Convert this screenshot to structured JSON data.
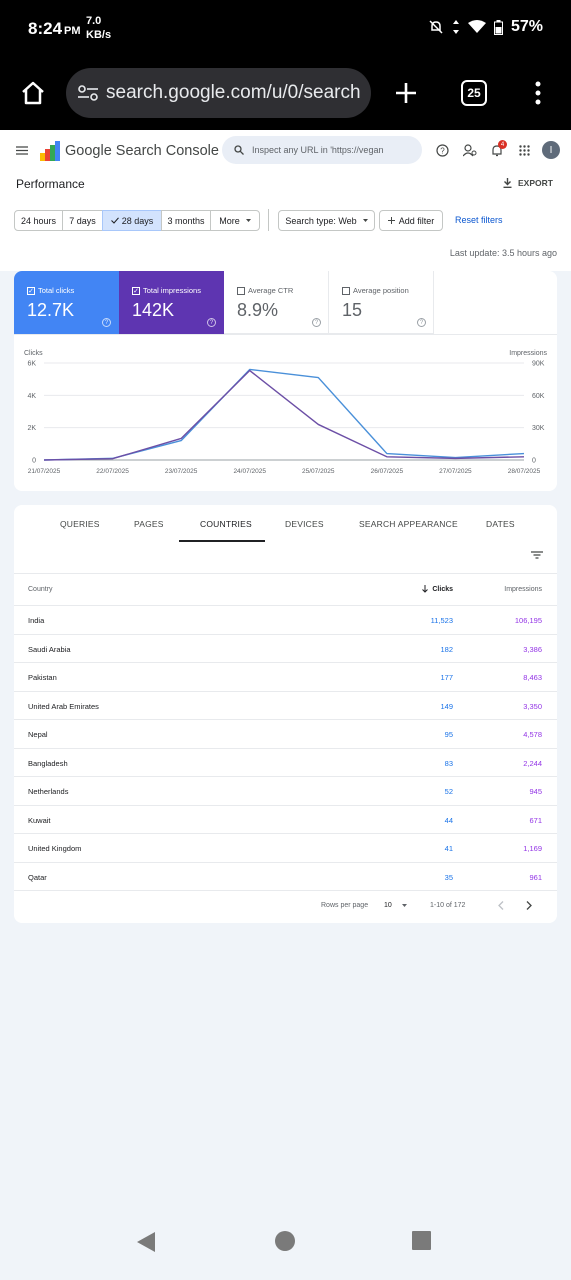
{
  "status_bar": {
    "time": "8:24",
    "ampm": "PM",
    "net_speed": "7.0",
    "net_unit": "KB/s",
    "battery": "57%"
  },
  "browser": {
    "url": "search.google.com/u/0/search",
    "tab_count": "25"
  },
  "header": {
    "product_name": "Google Search Console",
    "inspect_placeholder": "Inspect any URL in 'https://vegan",
    "notification_count": "4",
    "avatar_letter": "I"
  },
  "page": {
    "title": "Performance",
    "export_label": "EXPORT"
  },
  "filters": {
    "date_ranges": [
      "24 hours",
      "7 days",
      "28 days",
      "3 months",
      "More"
    ],
    "selected_range": "28 days",
    "search_type": "Search type: Web",
    "add_filter": "Add filter",
    "reset_filters": "Reset filters"
  },
  "last_update": "Last update: 3.5 hours ago",
  "metrics": [
    {
      "label": "Total clicks",
      "value": "12.7K",
      "selected": true,
      "color": "#4285f4"
    },
    {
      "label": "Total impressions",
      "value": "142K",
      "selected": true,
      "color": "#5e35b1"
    },
    {
      "label": "Average CTR",
      "value": "8.9%",
      "selected": false
    },
    {
      "label": "Average position",
      "value": "15",
      "selected": false
    }
  ],
  "chart_data": {
    "type": "line",
    "x": [
      "21/07/2025",
      "22/07/2025",
      "23/07/2025",
      "24/07/2025",
      "25/07/2025",
      "26/07/2025",
      "27/07/2025",
      "28/07/2025"
    ],
    "left_axis_label": "Clicks",
    "right_axis_label": "Impressions",
    "left_ticks": [
      "6K",
      "4K",
      "2K",
      "0"
    ],
    "right_ticks": [
      "90K",
      "60K",
      "30K",
      "0"
    ],
    "left_ylim": [
      0,
      6000
    ],
    "right_ylim": [
      0,
      90000
    ],
    "series": [
      {
        "name": "Clicks",
        "axis": "left",
        "color": "#4a90d9",
        "values": [
          0,
          100,
          1200,
          5600,
          5100,
          400,
          150,
          400
        ]
      },
      {
        "name": "Impressions",
        "axis": "right",
        "color": "#6c4fa6",
        "values": [
          0,
          1200,
          20000,
          83000,
          33000,
          3000,
          1500,
          3000
        ]
      }
    ]
  },
  "tabs": [
    "QUERIES",
    "PAGES",
    "COUNTRIES",
    "DEVICES",
    "SEARCH APPEARANCE",
    "DATES"
  ],
  "active_tab": "COUNTRIES",
  "table": {
    "headers": {
      "country": "Country",
      "clicks": "Clicks",
      "impressions": "Impressions"
    },
    "rows": [
      {
        "country": "India",
        "clicks": "11,523",
        "impressions": "106,195"
      },
      {
        "country": "Saudi Arabia",
        "clicks": "182",
        "impressions": "3,386"
      },
      {
        "country": "Pakistan",
        "clicks": "177",
        "impressions": "8,463"
      },
      {
        "country": "United Arab Emirates",
        "clicks": "149",
        "impressions": "3,350"
      },
      {
        "country": "Nepal",
        "clicks": "95",
        "impressions": "4,578"
      },
      {
        "country": "Bangladesh",
        "clicks": "83",
        "impressions": "2,244"
      },
      {
        "country": "Netherlands",
        "clicks": "52",
        "impressions": "945"
      },
      {
        "country": "Kuwait",
        "clicks": "44",
        "impressions": "671"
      },
      {
        "country": "United Kingdom",
        "clicks": "41",
        "impressions": "1,169"
      },
      {
        "country": "Qatar",
        "clicks": "35",
        "impressions": "961"
      }
    ],
    "pagination": {
      "rows_per_page_label": "Rows per page",
      "rows_per_page": "10",
      "range": "1-10 of 172"
    }
  }
}
